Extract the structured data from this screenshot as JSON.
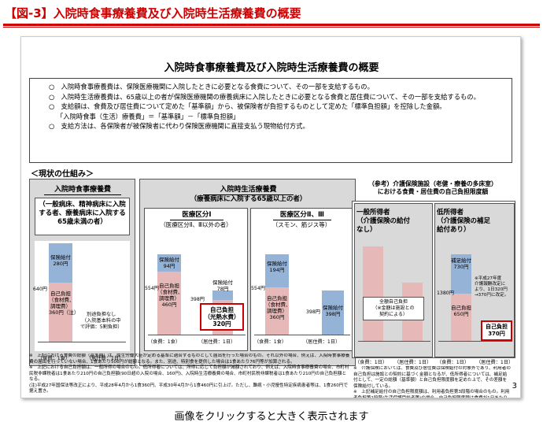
{
  "header": {
    "title": "【図-3】入院時食事療養費及び入院時生活療養費の概要"
  },
  "sheet": {
    "title": "入院時食事療養費及び入院時生活療養費の概要",
    "bullets": [
      "○　入院時食事療養費は、保険医療機関に入院したときに必要となる食費について、その一部を支給するもの。",
      "○　入院時生活療養費は、65歳以上の者が保険医療機関の療養病床に入院したときに必要となる食費と居住費について、その一部を支給するもの。",
      "○　支給額は、食費及び居住費について定めた「基準額」から、被保険者が負担するものとして定めた「標準負担額」を控除した金額。",
      "「入院時食事（生活）療養費」＝「基準額」－「標準負担額」",
      "○　支給方法は、各保険者が被保険者に代わり保険医療機関に直接支払う現物給付方式。"
    ],
    "current_label": "＜現状の仕組み＞",
    "meal": {
      "title": "入院時食事療養費",
      "sub": "（一般病床、精神病床に入院する者、療養病床に入院する65歳未満の者）",
      "benefit": "保険給付\n280円",
      "self": "自己負担\n（食材費、\n調理費）\n360円（注）",
      "total": "640円",
      "note": "別途負担なし\n（入院基本料の中\nで評価：5割負担）",
      "cap1": "（食費：1食）",
      "cap2": "（居住費：1日）"
    },
    "life": {
      "title": "入院時生活療養費",
      "sub": "（療養病床に入院する65歳以上の者）",
      "c1": {
        "title": "医療区分Ⅰ",
        "sub": "（医療区分Ⅱ、Ⅲ以外の者）",
        "benefit1": "保険給付\n94円",
        "self1": "自己負担\n（食材費、\n調理費）\n460円",
        "total1": "554円",
        "benefit2": "保険給付\n78円",
        "self2": "自己負担\n（光熱水費）\n320円",
        "total2": "398円"
      },
      "c2": {
        "title": "医療区分Ⅱ、Ⅲ",
        "sub": "（スモン、筋ジス等）",
        "benefit1": "保険給付\n194円",
        "self1": "自己負担\n（食材費、\n調理費）\n360円",
        "total1": "554円",
        "benefit2": "保険給付\n398円",
        "total2": "398円"
      },
      "caps": [
        "（食費：1食）",
        "（居住費：1日）",
        "（食費：1食）",
        "（居住費：1日）"
      ]
    },
    "ref": {
      "title": "（参考）介護保険施設（老健・療養の多床室）\nにおける食費・居住費の自己負担限度額",
      "general": "一般所得者\n（介護保険の給付\nなし）",
      "low": "低所得者\n（介護保険の補足\n給付あり）",
      "general_box": "全額自己負担\n（※金額は施設との\n契約による）",
      "low_benefit": "補足給付\n730円",
      "low_self": "自己負担\n650円",
      "low_total": "1380円",
      "low_note": "※平成27年度\n介護報酬改定に\nより、1日320円\n→370円に改定。",
      "low_red": "自己負担\n370円",
      "caps": [
        "（食費：1日）",
        "（居住費：1日）",
        "（食費：1日）",
        "（居住費：1日）"
      ]
    },
    "notes_left": "※　上記における食費の総額（基準額）は、厚生労働大臣が定める基準に適合するものとして届出を行った場合のもの。それ以外の場合、例えば、入院時食事療養費の届出を行っていない場合、1食あたり506円が総額となる。また、別途、特別食を提供した場合は1食あたり76円等が加算される。\n※　上記における自己負担額は、一般所得の場合のもの。低所得者については、所得に応じて負担額が減額されており、例えば、入院時食事療養費の場合、市町村民税非課税者は1食あたり210円の自己負担額(90日超の入院の場合、160円)、入院時生活療養費の場合、市町村民税非課税者は1食あたり210円の自己負担額となる。\n(注)平成27年国保法等改正により、平成28年4月から1食360円、平成30年4月から1食460円に引上げ。ただし、難病・小児慢性特定疾病患者等は、1食260円で据え置き。",
    "notes_right": "※　介護保険においては、食費及び居住費は保険給付の対象外であり、利用者の自己負担は施設との契約に基づく金額となるが、低所得者については、補足給付として、一定の総額（基準額）と自己負担限度額を定めた上で、その差額を保険給付している。\n※　上記補足給付の自己負担限度額は、利用者負担第3段階の場合のもの。利用者負担第1段階(生活保護受給者等)の場合、自己負担限度額は食費が1日あたり300円、居住費が0円となる。",
    "page": "3"
  },
  "footer": {
    "text": "画像をクリックすると大きく表示されます"
  }
}
